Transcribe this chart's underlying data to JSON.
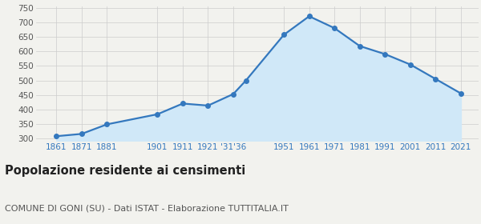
{
  "years": [
    1861,
    1871,
    1881,
    1901,
    1911,
    1921,
    1931,
    1936,
    1951,
    1961,
    1971,
    1981,
    1991,
    2001,
    2011,
    2021
  ],
  "population": [
    307,
    315,
    348,
    383,
    420,
    413,
    453,
    500,
    658,
    722,
    681,
    619,
    591,
    555,
    505,
    455
  ],
  "line_color": "#3478be",
  "fill_color": "#d0e8f8",
  "marker_color": "#3478be",
  "bg_color": "#f2f2ee",
  "grid_color": "#cccccc",
  "ylim_min": 290,
  "ylim_max": 755,
  "yticks": [
    300,
    350,
    400,
    450,
    500,
    550,
    600,
    650,
    700,
    750
  ],
  "xlim_min": 1853,
  "xlim_max": 2028,
  "xtick_positions": [
    1861,
    1871,
    1881,
    1901,
    1911,
    1921,
    1931,
    1951,
    1961,
    1971,
    1981,
    1991,
    2001,
    2011,
    2021
  ],
  "xtick_labels": [
    "1861",
    "1871",
    "1881",
    "1901",
    "1911",
    "1921",
    "'31'36",
    "1951",
    "1961",
    "1971",
    "1981",
    "1991",
    "2001",
    "2011",
    "2021"
  ],
  "title": "Popolazione residente ai censimenti",
  "subtitle": "COMUNE DI GONI (SU) - Dati ISTAT - Elaborazione TUTTITALIA.IT",
  "title_fontsize": 10.5,
  "subtitle_fontsize": 8.0,
  "tick_fontsize": 7.5,
  "ytick_fontsize": 7.5,
  "tick_color": "#3478be",
  "ytick_color": "#555555"
}
